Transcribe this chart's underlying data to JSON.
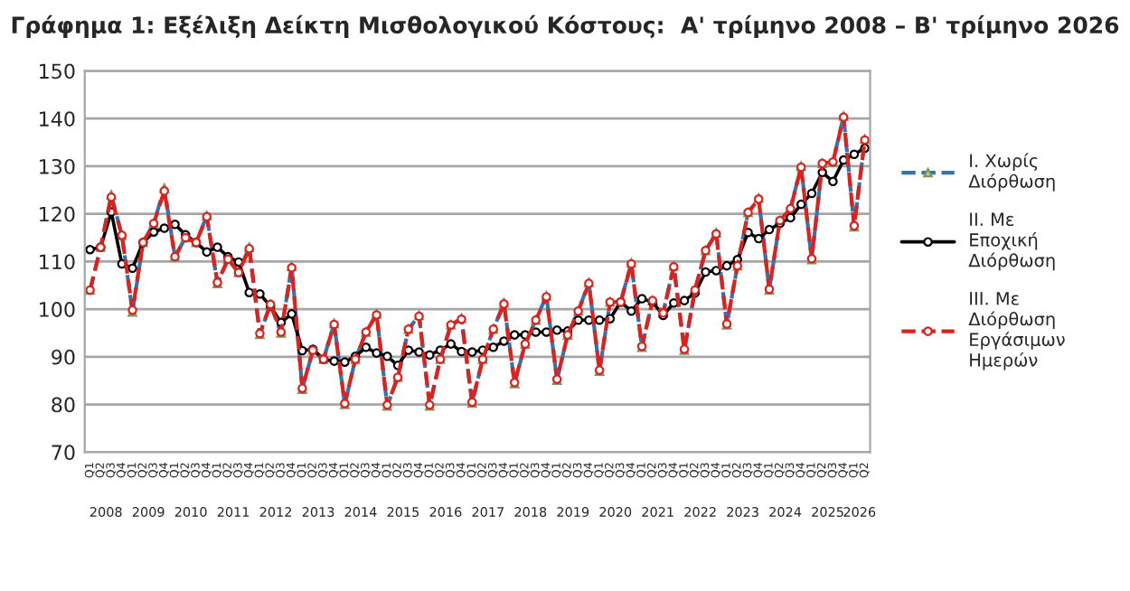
{
  "chart_data": {
    "type": "line",
    "title": "Γράφημα 1: Εξέλιξη Δείκτη Μισθολογικού Κόστους:  Α' τρίμηνο 2008 – Β' τρίμηνο 2026",
    "categories": [
      "Q1",
      "Q2",
      "Q3",
      "Q4",
      "Q1",
      "Q2",
      "Q3",
      "Q4",
      "Q1",
      "Q2",
      "Q3",
      "Q4",
      "Q1",
      "Q2",
      "Q3",
      "Q4",
      "Q1",
      "Q2",
      "Q3",
      "Q4",
      "Q1",
      "Q2",
      "Q3",
      "Q4",
      "Q1",
      "Q2",
      "Q3",
      "Q4",
      "Q1",
      "Q2",
      "Q3",
      "Q4",
      "Q1",
      "Q2",
      "Q3",
      "Q4",
      "Q1",
      "Q2",
      "Q3",
      "Q4",
      "Q1",
      "Q2",
      "Q3",
      "Q4",
      "Q1",
      "Q2",
      "Q3",
      "Q4",
      "Q1",
      "Q2",
      "Q3",
      "Q4",
      "Q1",
      "Q2",
      "Q3",
      "Q4",
      "Q1",
      "Q2",
      "Q3",
      "Q4",
      "Q1",
      "Q2",
      "Q3",
      "Q4",
      "Q1",
      "Q2",
      "Q3",
      "Q4",
      "Q1",
      "Q2",
      "Q3",
      "Q4",
      "Q1",
      "Q2"
    ],
    "series": [
      {
        "name": "I. Χωρίς\nΔιόρθωση",
        "color": "#2e75b6",
        "line_style": "dashed",
        "marker": "triangle",
        "values": [
          104,
          113,
          124,
          115.5,
          99.4,
          114,
          118,
          125.4,
          111,
          115,
          114,
          119.6,
          105.4,
          110.5,
          107.7,
          113,
          94.7,
          101,
          95,
          109,
          83.2,
          91.4,
          89.5,
          97,
          80,
          89.5,
          95.2,
          99,
          79.7,
          85.7,
          95.8,
          98.7,
          79.7,
          89.5,
          96.7,
          98.1,
          80.3,
          89.5,
          95.8,
          101.3,
          84.4,
          92.7,
          97.7,
          102.8,
          85.1,
          94.6,
          99.6,
          105.6,
          87,
          101.5,
          101.5,
          109.7,
          92,
          101.8,
          99.2,
          109.1,
          91.4,
          104,
          112.3,
          116,
          96.7,
          109.1,
          120.3,
          123.3,
          104,
          118.6,
          121.1,
          130,
          110.4,
          130.6,
          130.9,
          140.5,
          117.3,
          135.7
        ]
      },
      {
        "name": "II. Με\nΕποχική\nΔιόρθωση",
        "color": "#000000",
        "line_style": "solid",
        "marker": "circle",
        "values": [
          112.5,
          113,
          120.4,
          109.5,
          108.6,
          114,
          116.2,
          117,
          117.8,
          115.6,
          114,
          112,
          113,
          111,
          109.9,
          103.5,
          103.2,
          100.6,
          97.2,
          99,
          91.3,
          91.6,
          89.5,
          89.1,
          88.9,
          90.1,
          92,
          90.8,
          90.1,
          88.2,
          91.4,
          91,
          90.4,
          91.4,
          92.7,
          91.1,
          91,
          91.4,
          92,
          93.3,
          94.6,
          94.6,
          95.2,
          95.2,
          95.6,
          95.4,
          97.7,
          97.7,
          97.7,
          98,
          101.5,
          99.6,
          102.2,
          101.5,
          98.7,
          101.3,
          101.8,
          103.4,
          107.8,
          108.1,
          109.1,
          110.4,
          116.1,
          114.8,
          116.7,
          118,
          119.2,
          122,
          124.3,
          128.7,
          126.8,
          131.3,
          132.5,
          133.8
        ]
      },
      {
        "name": "III. Με\nΔιόρθωση\nΕργάσιμων\nΗμερών",
        "color": "#e0201b",
        "line_style": "dashed",
        "marker": "circle",
        "values": [
          104,
          113,
          123.5,
          115.5,
          99.8,
          114,
          118,
          124.8,
          111,
          115,
          114,
          119.4,
          105.6,
          110.5,
          107.7,
          112.7,
          94.9,
          101,
          95.2,
          108.7,
          83.4,
          91.4,
          89.5,
          96.8,
          80.2,
          89.5,
          95.2,
          98.8,
          79.9,
          85.7,
          95.8,
          98.5,
          79.9,
          89.5,
          96.7,
          97.9,
          80.5,
          89.5,
          95.8,
          101.1,
          84.6,
          92.7,
          97.7,
          102.6,
          85.3,
          94.6,
          99.6,
          105.4,
          87.2,
          101.5,
          101.5,
          109.5,
          92.2,
          101.8,
          99.2,
          108.9,
          91.6,
          104,
          112.3,
          115.8,
          96.9,
          109.1,
          120.3,
          123.1,
          104.2,
          118.6,
          121.1,
          129.8,
          110.6,
          130.6,
          130.9,
          140.3,
          117.5,
          135.5
        ]
      }
    ],
    "ylim": [
      70,
      150
    ],
    "yticks": [
      70,
      80,
      90,
      100,
      110,
      120,
      130,
      140,
      150
    ],
    "grid": "y",
    "legend": "right",
    "annotations": [
      "2008",
      "2009",
      "2010",
      "2011",
      "2012",
      "2013",
      "2014",
      "2015",
      "2016",
      "2017",
      "2018",
      "2019",
      "2020",
      "2021",
      "2022",
      "2023",
      "2024",
      "2025",
      "2026"
    ]
  }
}
